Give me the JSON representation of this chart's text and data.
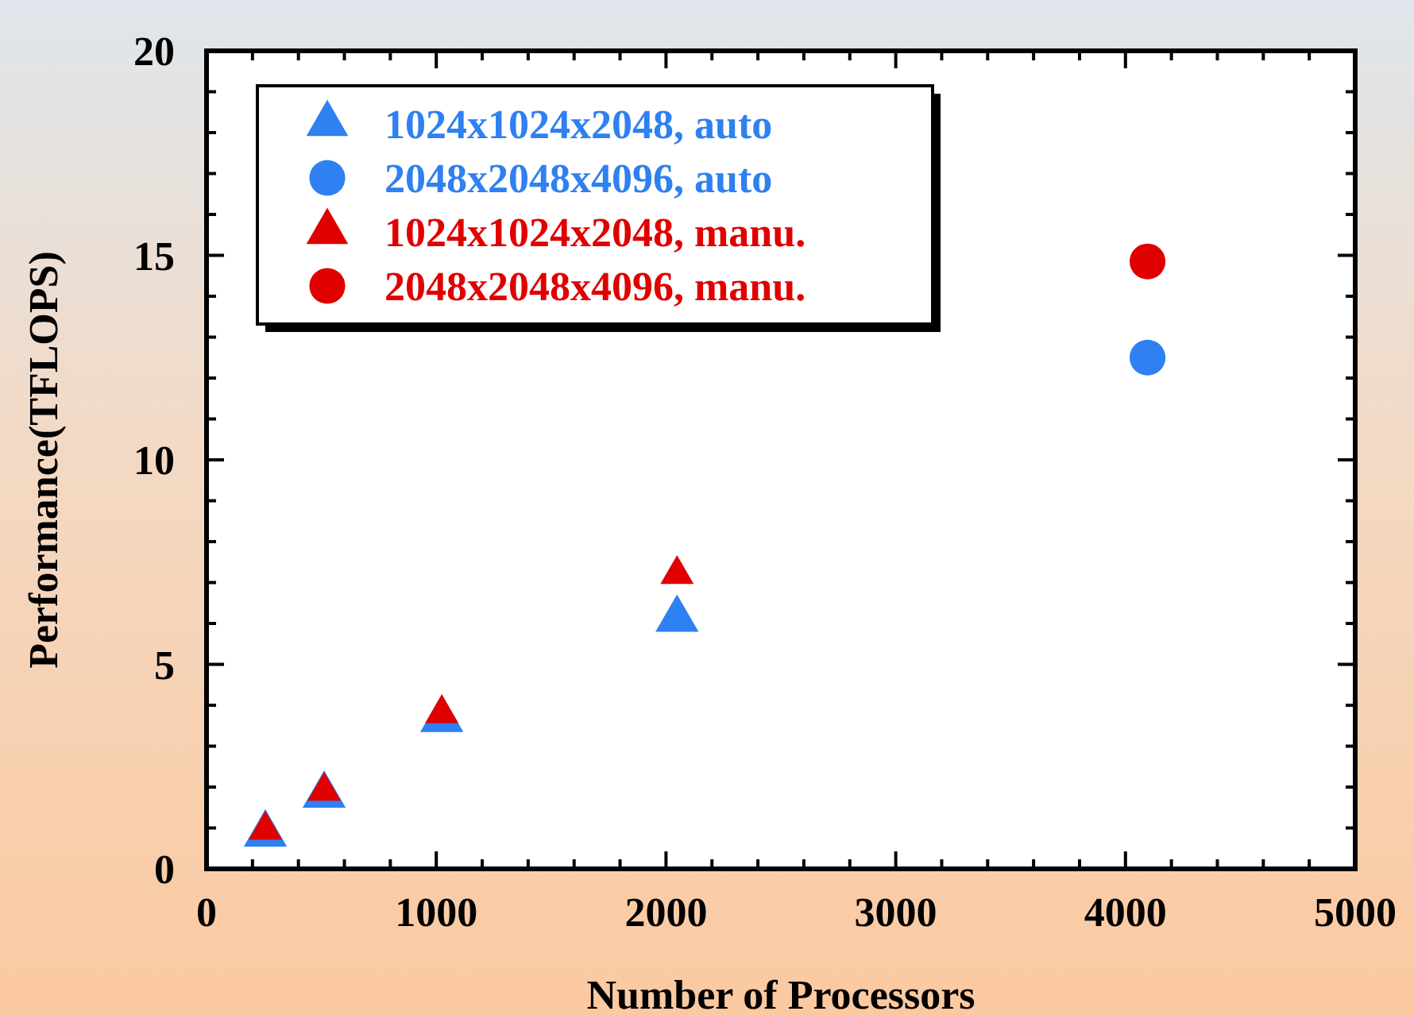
{
  "chart_data": {
    "type": "scatter",
    "xlabel": "Number of Processors",
    "ylabel": "Performance(TFLOPS)",
    "xlim": [
      0,
      5000
    ],
    "ylim": [
      0,
      20
    ],
    "xticks": [
      0,
      {
        "value": 200,
        "label": null
      },
      {
        "value": 400,
        "label": null
      },
      {
        "value": 600,
        "label": null
      },
      {
        "value": 800,
        "label": null
      },
      1000,
      {
        "value": 1200,
        "label": null
      },
      {
        "value": 1400,
        "label": null
      },
      {
        "value": 1600,
        "label": null
      },
      {
        "value": 1800,
        "label": null
      },
      2000,
      {
        "value": 2200,
        "label": null
      },
      {
        "value": 2400,
        "label": null
      },
      {
        "value": 2600,
        "label": null
      },
      {
        "value": 2800,
        "label": null
      },
      3000,
      {
        "value": 3200,
        "label": null
      },
      {
        "value": 3400,
        "label": null
      },
      {
        "value": 3600,
        "label": null
      },
      {
        "value": 3800,
        "label": null
      },
      4000,
      {
        "value": 4200,
        "label": null
      },
      {
        "value": 4400,
        "label": null
      },
      {
        "value": 4600,
        "label": null
      },
      {
        "value": 4800,
        "label": null
      },
      5000
    ],
    "yticks": [
      0,
      {
        "value": 1,
        "label": null
      },
      {
        "value": 2,
        "label": null
      },
      {
        "value": 3,
        "label": null
      },
      {
        "value": 4,
        "label": null
      },
      5,
      {
        "value": 6,
        "label": null
      },
      {
        "value": 7,
        "label": null
      },
      {
        "value": 8,
        "label": null
      },
      {
        "value": 9,
        "label": null
      },
      10,
      {
        "value": 11,
        "label": null
      },
      {
        "value": 12,
        "label": null
      },
      {
        "value": 13,
        "label": null
      },
      {
        "value": 14,
        "label": null
      },
      15,
      {
        "value": 16,
        "label": null
      },
      {
        "value": 17,
        "label": null
      },
      {
        "value": 18,
        "label": null
      },
      {
        "value": 19,
        "label": null
      },
      20
    ],
    "legend": "top left",
    "grid": false,
    "series": [
      {
        "name": "1024x1024x2048, auto",
        "color": "#2f80f0",
        "marker": "triangle",
        "x": [
          256,
          512,
          1024,
          2048
        ],
        "values": [
          0.85,
          1.8,
          3.65,
          6.1
        ]
      },
      {
        "name": "2048x2048x4096, auto",
        "color": "#2f80f0",
        "marker": "circle",
        "x": [
          4096
        ],
        "values": [
          12.5
        ]
      },
      {
        "name": "1024x1024x2048, manu.",
        "color": "#e00000",
        "marker": "triangle",
        "x": [
          256,
          512,
          1024,
          2048
        ],
        "values": [
          0.95,
          1.9,
          3.8,
          7.2
        ]
      },
      {
        "name": "2048x2048x4096, manu.",
        "color": "#e00000",
        "marker": "circle",
        "x": [
          4096
        ],
        "values": [
          14.85
        ]
      }
    ]
  }
}
